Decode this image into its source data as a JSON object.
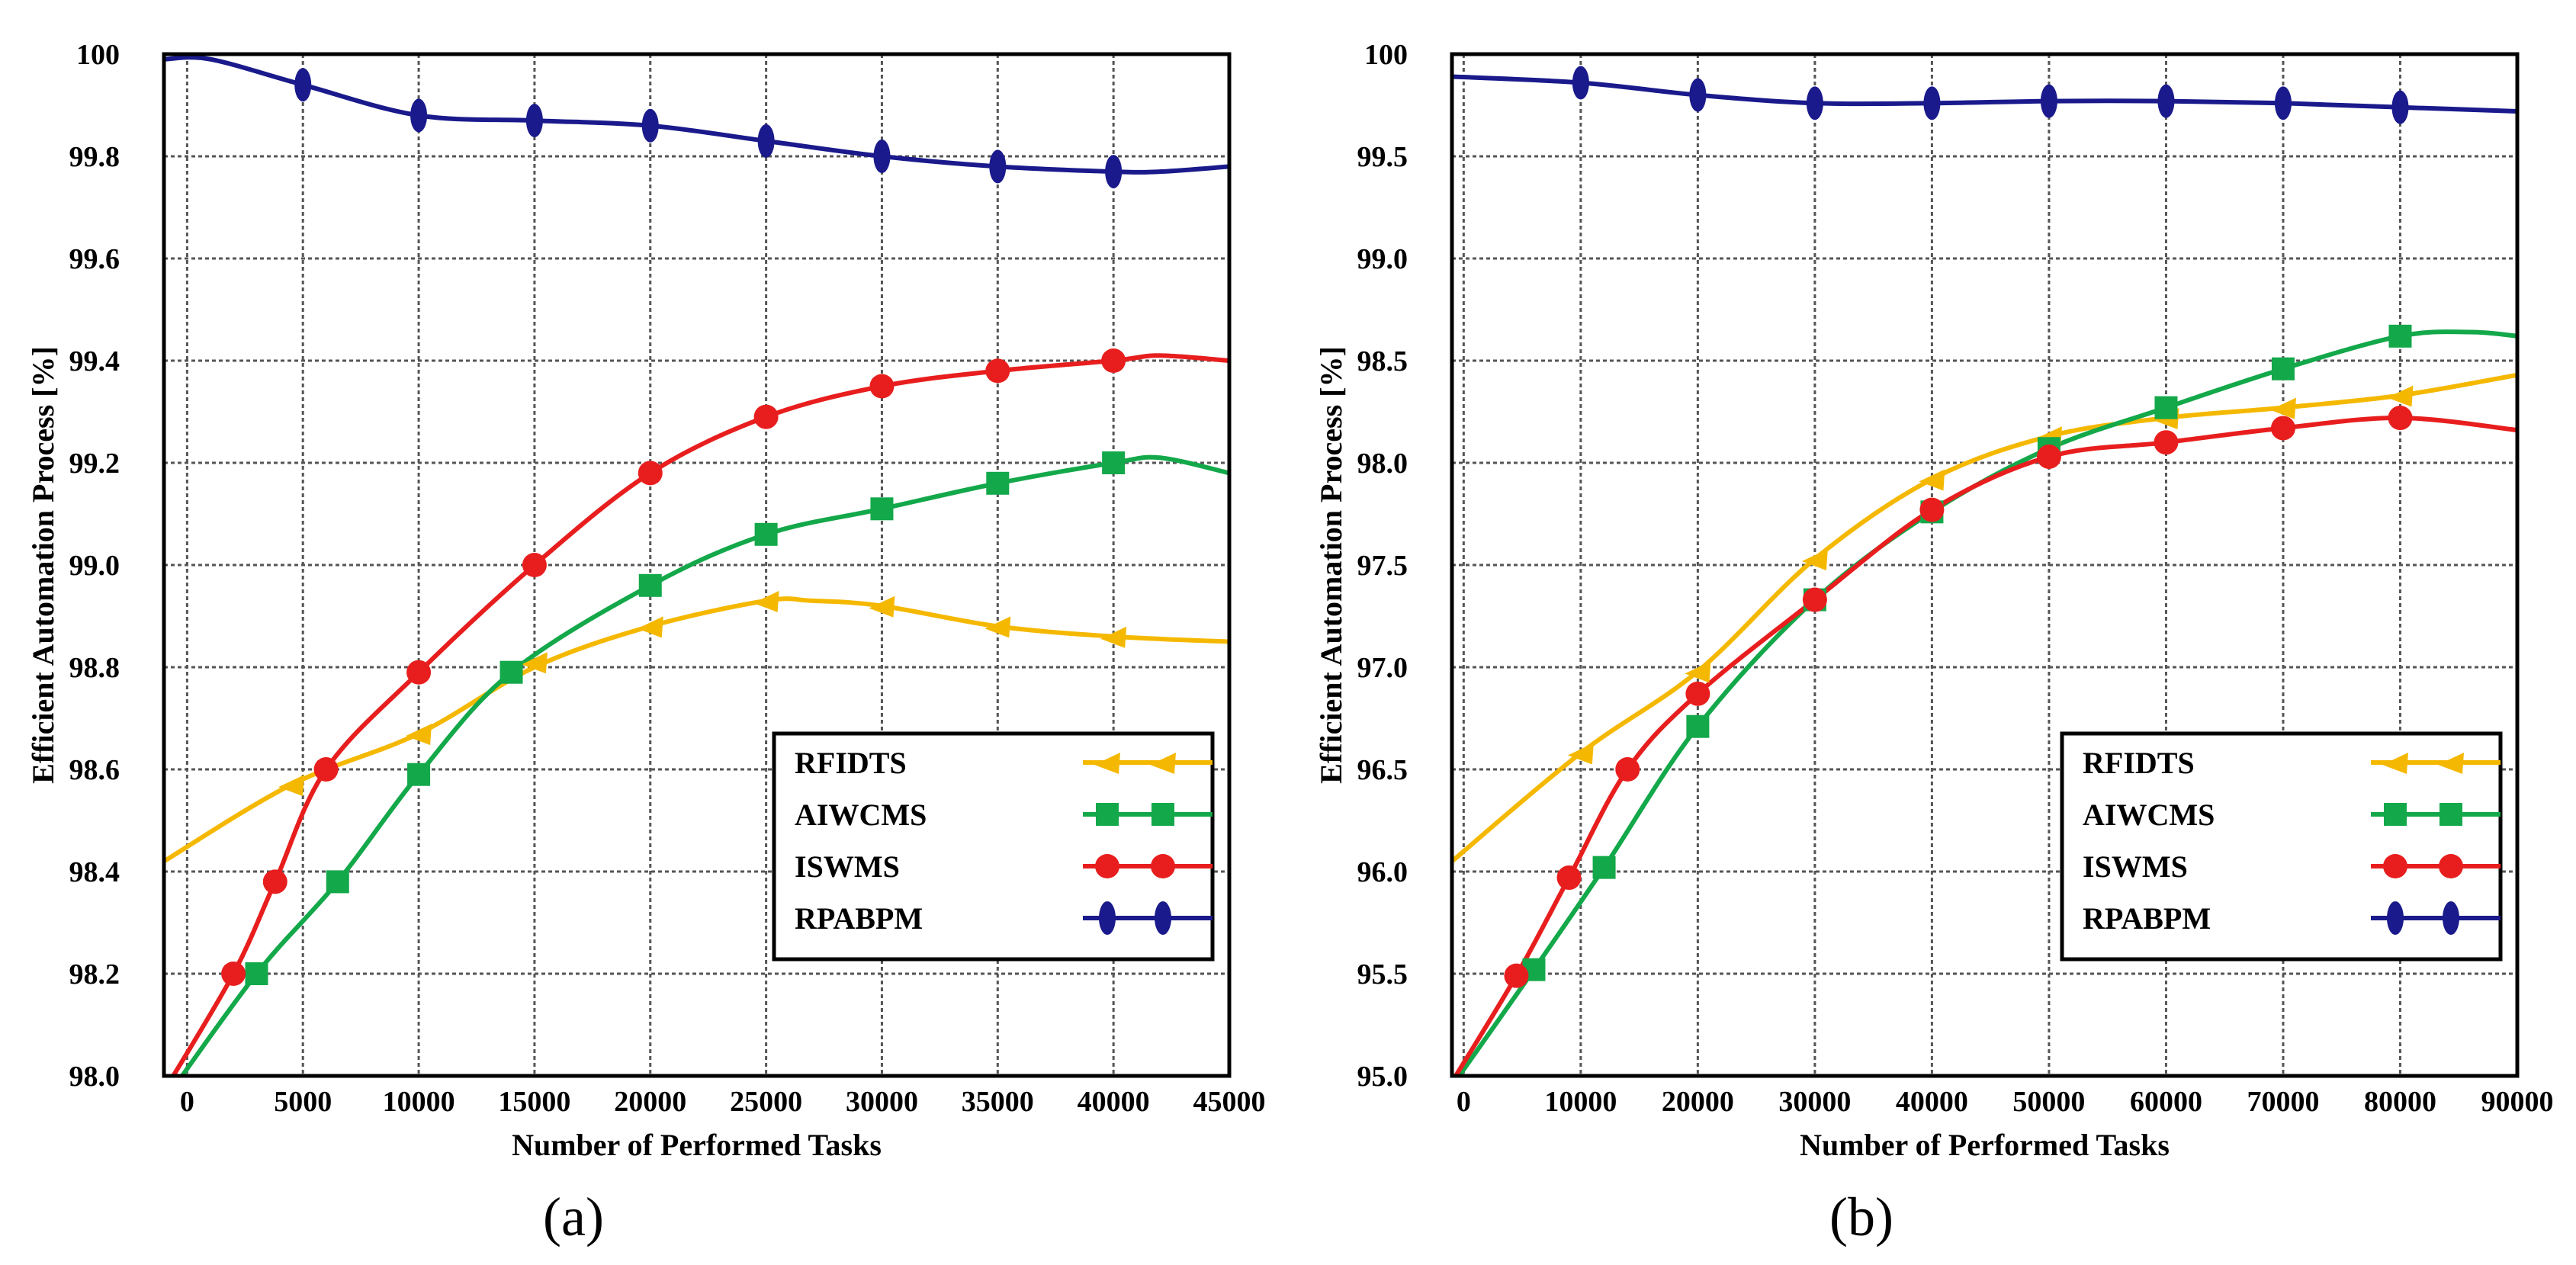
{
  "chart_data": [
    {
      "type": "line",
      "panel_label": "(a)",
      "xlabel": "Number of Performed Tasks",
      "ylabel": "Efficient Automation Process [%]",
      "xlim": [
        -1000,
        45000
      ],
      "ylim": [
        98.0,
        100.0
      ],
      "xticks": [
        0,
        5000,
        10000,
        15000,
        20000,
        25000,
        30000,
        35000,
        40000,
        45000
      ],
      "xtick_labels": [
        "0",
        "5000",
        "10000",
        "15000",
        "20000",
        "25000",
        "30000",
        "35000",
        "40000",
        "45000"
      ],
      "yticks": [
        98.0,
        98.2,
        98.4,
        98.6,
        98.8,
        99.0,
        99.2,
        99.4,
        99.6,
        99.8,
        100.0
      ],
      "ytick_labels": [
        "98.0",
        "98.2",
        "98.4",
        "98.6",
        "98.8",
        "99.0",
        "99.2",
        "99.4",
        "99.6",
        "99.8",
        "100"
      ],
      "legend_position": "bottom-right",
      "grid": true,
      "series": [
        {
          "name": "RFIDTS",
          "color": "#f5b800",
          "marker": "triangle",
          "x": [
            -1000,
            4500,
            10000,
            15000,
            20000,
            25000,
            27000,
            30000,
            35000,
            40000,
            45000
          ],
          "y": [
            98.42,
            98.57,
            98.67,
            98.8,
            98.88,
            98.93,
            98.93,
            98.92,
            98.88,
            98.86,
            98.85
          ],
          "marker_x": [
            4500,
            10000,
            15000,
            20000,
            25000,
            30000,
            35000,
            40000
          ],
          "marker_y": [
            98.57,
            98.67,
            98.81,
            98.88,
            98.93,
            98.92,
            98.88,
            98.86
          ]
        },
        {
          "name": "AIWCMS",
          "color": "#13a84a",
          "marker": "square",
          "x": [
            -1000,
            3000,
            6500,
            10000,
            14000,
            20000,
            25000,
            30000,
            35000,
            40000,
            42000,
            45000
          ],
          "y": [
            97.95,
            98.2,
            98.38,
            98.59,
            98.79,
            98.96,
            99.06,
            99.11,
            99.16,
            99.2,
            99.21,
            99.18
          ],
          "marker_x": [
            3000,
            6500,
            10000,
            14000,
            20000,
            25000,
            30000,
            35000,
            40000
          ],
          "marker_y": [
            98.2,
            98.38,
            98.59,
            98.79,
            98.96,
            99.06,
            99.11,
            99.16,
            99.2
          ]
        },
        {
          "name": "ISWMS",
          "color": "#e81e1e",
          "marker": "circle",
          "x": [
            -1000,
            2000,
            3800,
            6000,
            10000,
            15000,
            20000,
            25000,
            30000,
            35000,
            40000,
            42000,
            45000
          ],
          "y": [
            97.97,
            98.2,
            98.38,
            98.6,
            98.79,
            99.0,
            99.18,
            99.29,
            99.35,
            99.38,
            99.4,
            99.41,
            99.4
          ],
          "marker_x": [
            2000,
            3800,
            6000,
            10000,
            15000,
            20000,
            25000,
            30000,
            35000,
            40000
          ],
          "marker_y": [
            98.2,
            98.38,
            98.6,
            98.79,
            99.0,
            99.18,
            99.29,
            99.35,
            99.38,
            99.4
          ]
        },
        {
          "name": "RPABPM",
          "color": "#1a1a8c",
          "marker": "ellipse",
          "x": [
            -1000,
            1000,
            5000,
            10000,
            15000,
            20000,
            25000,
            30000,
            35000,
            40000,
            42000,
            45000
          ],
          "y": [
            99.99,
            99.99,
            99.94,
            99.88,
            99.87,
            99.86,
            99.83,
            99.8,
            99.78,
            99.77,
            99.77,
            99.78
          ],
          "marker_x": [
            5000,
            10000,
            15000,
            20000,
            25000,
            30000,
            35000,
            40000
          ],
          "marker_y": [
            99.94,
            99.88,
            99.87,
            99.86,
            99.83,
            99.8,
            99.78,
            99.77
          ]
        }
      ]
    },
    {
      "type": "line",
      "panel_label": "(b)",
      "xlabel": "Number of Performed Tasks",
      "ylabel": "Efficient Automation Process [%]",
      "xlim": [
        -1000,
        90000
      ],
      "ylim": [
        95.0,
        100.0
      ],
      "xticks": [
        0,
        10000,
        20000,
        30000,
        40000,
        50000,
        60000,
        70000,
        80000,
        90000
      ],
      "xtick_labels": [
        "0",
        "10000",
        "20000",
        "30000",
        "40000",
        "50000",
        "60000",
        "70000",
        "80000",
        "90000"
      ],
      "yticks": [
        95.0,
        95.5,
        96.0,
        96.5,
        97.0,
        97.5,
        98.0,
        98.5,
        99.0,
        99.5,
        100.0
      ],
      "ytick_labels": [
        "95.0",
        "95.5",
        "96.0",
        "96.5",
        "97.0",
        "97.5",
        "98.0",
        "98.5",
        "99.0",
        "99.5",
        "100"
      ],
      "legend_position": "bottom-right",
      "grid": true,
      "series": [
        {
          "name": "RFIDTS",
          "color": "#f5b800",
          "marker": "triangle",
          "x": [
            -1000,
            10000,
            20000,
            30000,
            40000,
            50000,
            60000,
            70000,
            80000,
            90000
          ],
          "y": [
            96.05,
            96.58,
            96.98,
            97.53,
            97.92,
            98.13,
            98.22,
            98.27,
            98.33,
            98.43
          ],
          "marker_x": [
            10000,
            20000,
            30000,
            40000,
            50000,
            60000,
            70000,
            80000
          ],
          "marker_y": [
            96.58,
            96.98,
            97.53,
            97.92,
            98.13,
            98.22,
            98.27,
            98.33
          ]
        },
        {
          "name": "AIWCMS",
          "color": "#13a84a",
          "marker": "square",
          "x": [
            -1000,
            6000,
            12000,
            20000,
            30000,
            40000,
            50000,
            60000,
            70000,
            80000,
            86000,
            90000
          ],
          "y": [
            94.95,
            95.52,
            96.02,
            96.71,
            97.33,
            97.76,
            98.07,
            98.27,
            98.46,
            98.62,
            98.64,
            98.62
          ],
          "marker_x": [
            6000,
            12000,
            20000,
            30000,
            40000,
            50000,
            60000,
            70000,
            80000
          ],
          "marker_y": [
            95.52,
            96.02,
            96.71,
            97.33,
            97.76,
            98.07,
            98.27,
            98.46,
            98.62
          ]
        },
        {
          "name": "ISWMS",
          "color": "#e81e1e",
          "marker": "circle",
          "x": [
            -1000,
            4500,
            9000,
            14000,
            20000,
            30000,
            40000,
            50000,
            60000,
            70000,
            80000,
            90000
          ],
          "y": [
            94.97,
            95.49,
            95.97,
            96.5,
            96.87,
            97.33,
            97.77,
            98.03,
            98.1,
            98.17,
            98.22,
            98.16
          ],
          "marker_x": [
            4500,
            9000,
            14000,
            20000,
            30000,
            40000,
            50000,
            60000,
            70000,
            80000
          ],
          "marker_y": [
            95.49,
            95.97,
            96.5,
            96.87,
            97.33,
            97.77,
            98.03,
            98.1,
            98.17,
            98.22
          ]
        },
        {
          "name": "RPABPM",
          "color": "#1a1a8c",
          "marker": "ellipse",
          "x": [
            -1000,
            10000,
            20000,
            30000,
            40000,
            50000,
            60000,
            70000,
            80000,
            90000
          ],
          "y": [
            99.89,
            99.86,
            99.8,
            99.76,
            99.76,
            99.77,
            99.77,
            99.76,
            99.74,
            99.72
          ],
          "marker_x": [
            10000,
            20000,
            30000,
            40000,
            50000,
            60000,
            70000,
            80000
          ],
          "marker_y": [
            99.86,
            99.8,
            99.76,
            99.76,
            99.77,
            99.77,
            99.76,
            99.74
          ]
        }
      ]
    }
  ]
}
